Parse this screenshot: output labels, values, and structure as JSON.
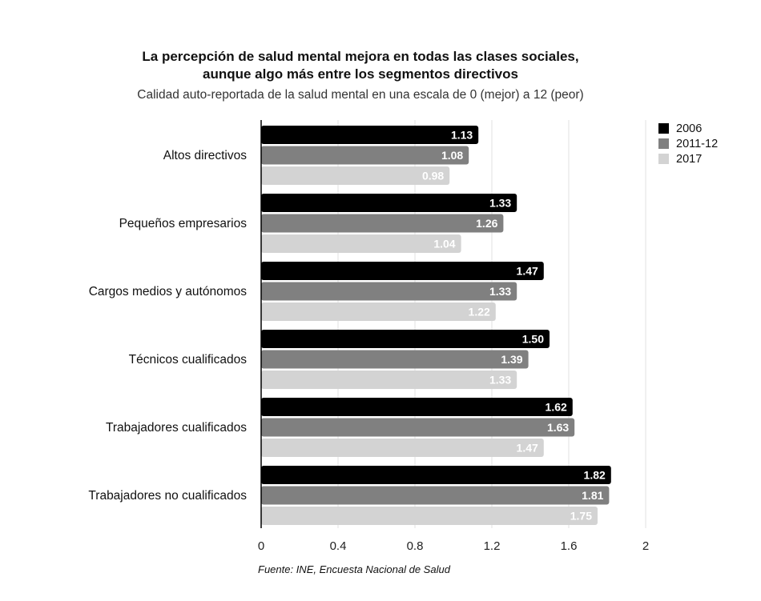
{
  "title_line1": "La percepción de salud mental mejora en todas las clases sociales,",
  "title_line2": "aunque algo más entre los segmentos directivos",
  "subtitle": "Calidad auto-reportada de la salud mental en una escala de 0 (mejor) a 12 (peor)",
  "source": "Fuente: INE, Encuesta Nacional de Salud",
  "chart_data": {
    "type": "bar",
    "orientation": "horizontal",
    "title": "La percepción de salud mental mejora en todas las clases sociales, aunque algo más entre los segmentos directivos",
    "subtitle": "Calidad auto-reportada de la salud mental en una escala de 0 (mejor) a 12 (peor)",
    "categories": [
      "Altos directivos",
      "Pequeños empresarios",
      "Cargos medios y autónomos",
      "Técnicos cualificados",
      "Trabajadores cualificados",
      "Trabajadores no cualificados"
    ],
    "series": [
      {
        "name": "2006",
        "color": "#000000",
        "label_color": "#ffffff",
        "values": [
          1.13,
          1.33,
          1.47,
          1.5,
          1.62,
          1.82
        ],
        "labels": [
          "1.13",
          "1.33",
          "1.47",
          "1.50",
          "1.62",
          "1.82"
        ]
      },
      {
        "name": "2011-12",
        "color": "#808080",
        "label_color": "#ffffff",
        "values": [
          1.08,
          1.26,
          1.33,
          1.39,
          1.63,
          1.81
        ],
        "labels": [
          "1.08",
          "1.26",
          "1.33",
          "1.39",
          "1.63",
          "1.81"
        ]
      },
      {
        "name": "2017",
        "color": "#d3d3d3",
        "label_color": "#ffffff",
        "values": [
          0.98,
          1.04,
          1.22,
          1.33,
          1.47,
          1.75
        ],
        "labels": [
          "0.98",
          "1.04",
          "1.22",
          "1.33",
          "1.47",
          "1.75"
        ]
      }
    ],
    "xlim": [
      0,
      2
    ],
    "xticks": [
      0,
      0.4,
      0.8,
      1.2,
      1.6,
      2
    ],
    "xtick_labels": [
      "0",
      "0.4",
      "0.8",
      "1.2",
      "1.6",
      "2"
    ],
    "grid": true,
    "legend_position": "top-right"
  }
}
